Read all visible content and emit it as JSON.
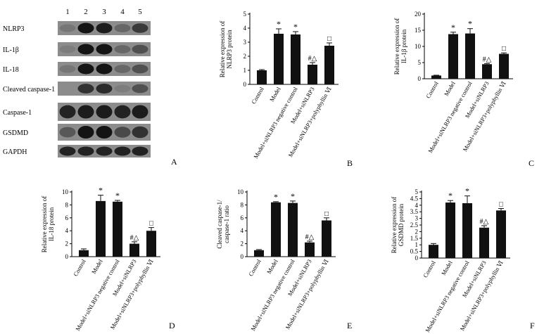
{
  "blot": {
    "letter": "A",
    "lane_numbers": [
      "1",
      "2",
      "3",
      "4",
      "5"
    ],
    "rows": [
      {
        "label": "NLRP3",
        "intensity": [
          0.35,
          1.0,
          0.95,
          0.45,
          0.75
        ]
      },
      {
        "label": "IL-1β",
        "intensity": [
          0.3,
          1.0,
          1.0,
          0.45,
          0.6
        ]
      },
      {
        "label": "IL-18",
        "intensity": [
          0.35,
          1.0,
          1.0,
          0.45,
          0.6
        ]
      },
      {
        "label": "Cleaved caspase-1",
        "intensity": [
          0.2,
          0.8,
          0.85,
          0.3,
          0.6
        ]
      },
      {
        "label": "Caspase-1",
        "intensity": [
          0.9,
          0.95,
          0.95,
          0.9,
          0.95
        ]
      },
      {
        "label": "GSDMD",
        "intensity": [
          0.55,
          1.0,
          1.0,
          0.65,
          0.8
        ]
      },
      {
        "label": "GAPDH",
        "intensity": [
          0.9,
          0.9,
          0.9,
          0.9,
          0.9
        ]
      }
    ]
  },
  "chart_data": [
    {
      "panel": "B",
      "type": "bar",
      "ylabel": [
        "Relative expression of",
        "NLRP3 protein"
      ],
      "ylim": [
        0,
        5
      ],
      "yticks": [
        0,
        1,
        2,
        3,
        4,
        5
      ],
      "categories": [
        "Control",
        "Model",
        "Model+siNLRP3 negative control",
        "Model+siNLRP3",
        "Model+siNLRP3+polyphyllin Ⅵ"
      ],
      "values": [
        1.0,
        3.6,
        3.55,
        1.4,
        2.75
      ],
      "errors": [
        0.05,
        0.35,
        0.2,
        0.15,
        0.2
      ],
      "annotations": [
        "",
        "*",
        "*",
        "#△",
        "□"
      ]
    },
    {
      "panel": "C",
      "type": "bar",
      "ylabel": [
        "Relative expression of",
        "IL-1β protein"
      ],
      "ylim": [
        0,
        20
      ],
      "yticks": [
        0,
        5,
        10,
        15,
        20
      ],
      "categories": [
        "Control",
        "Model",
        "Model+siNLRP3 negative control",
        "Model+siNLRP3",
        "Model+siNLRP3+polyphyllin Ⅵ"
      ],
      "values": [
        1.0,
        13.8,
        14.0,
        4.5,
        7.7
      ],
      "errors": [
        0.1,
        0.6,
        1.5,
        0.2,
        0.3
      ],
      "annotations": [
        "",
        "*",
        "*",
        "#△",
        "□"
      ]
    },
    {
      "panel": "D",
      "type": "bar",
      "ylabel": [
        "Relative expression of",
        "IL-18 protein"
      ],
      "ylim": [
        0,
        10
      ],
      "yticks": [
        0,
        2,
        4,
        6,
        8,
        10
      ],
      "categories": [
        "Control",
        "Model",
        "Model+siNLRP3 negative control",
        "Model+siNLRP3",
        "Model+siNLRP3+polyphyllin Ⅵ"
      ],
      "values": [
        1.0,
        8.6,
        8.5,
        2.0,
        4.0
      ],
      "errors": [
        0.2,
        0.9,
        0.2,
        0.3,
        0.5
      ],
      "annotations": [
        "",
        "*",
        "*",
        "#△",
        "□"
      ]
    },
    {
      "panel": "E",
      "type": "bar",
      "ylabel": [
        "Cleaved caspase-1/",
        "caspase-1 ratio"
      ],
      "ylim": [
        0,
        10
      ],
      "yticks": [
        0,
        2,
        4,
        6,
        8,
        10
      ],
      "categories": [
        "Control",
        "Model",
        "Model+siNLRP3 negative control",
        "Model+siNLRP3",
        "Model+siNLRP3+polyphyllin Ⅵ"
      ],
      "values": [
        1.0,
        8.4,
        8.3,
        2.2,
        5.6
      ],
      "errors": [
        0.1,
        0.1,
        0.3,
        0.2,
        0.4
      ],
      "annotations": [
        "",
        "*",
        "*",
        "#△",
        "□"
      ]
    },
    {
      "panel": "F",
      "type": "bar",
      "ylabel": [
        "Relative expression of",
        "GSDMD protein"
      ],
      "ylim": [
        0,
        5
      ],
      "yticks": [
        0,
        0.5,
        1,
        1.5,
        2,
        2.5,
        3,
        3.5,
        4,
        4.5,
        5
      ],
      "categories": [
        "Control",
        "Model",
        "Model+siNLRP3 negative control",
        "Model+siNLRP3",
        "Model+siNLRP3+polyphyllin Ⅵ"
      ],
      "values": [
        1.0,
        4.2,
        4.15,
        2.3,
        3.6
      ],
      "errors": [
        0.1,
        0.15,
        0.55,
        0.15,
        0.15
      ],
      "annotations": [
        "",
        "*",
        "*",
        "#△",
        "□"
      ]
    }
  ]
}
